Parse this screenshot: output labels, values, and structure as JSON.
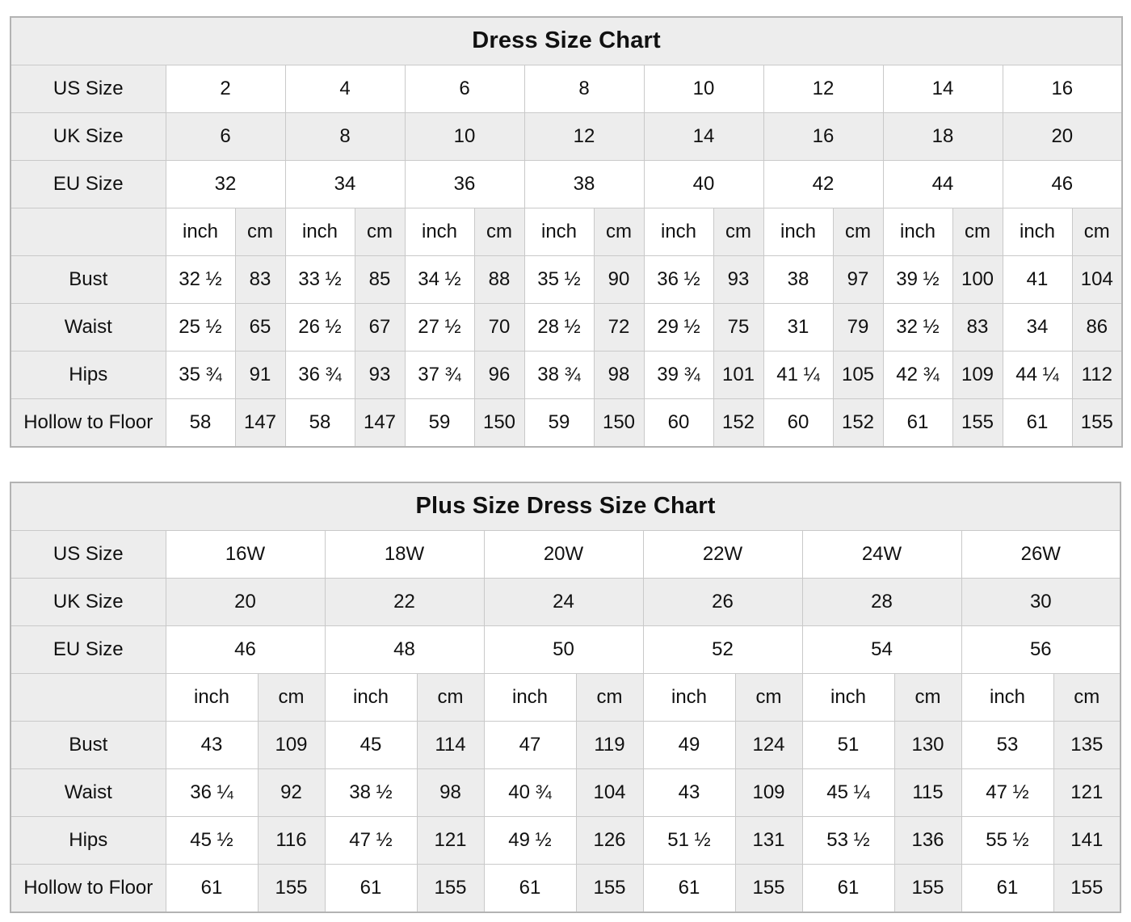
{
  "colors": {
    "shaded_cell_bg": "#ededed",
    "inner_border": "#c9c9c9",
    "outer_border": "#b3b3b3",
    "text": "#111111",
    "page_bg": "#ffffff"
  },
  "chart_data": [
    {
      "type": "table",
      "title": "Dress Size Chart",
      "size_rows": [
        {
          "label": "US Size",
          "values": [
            "2",
            "4",
            "6",
            "8",
            "10",
            "12",
            "14",
            "16"
          ]
        },
        {
          "label": "UK Size",
          "values": [
            "6",
            "8",
            "10",
            "12",
            "14",
            "16",
            "18",
            "20"
          ]
        },
        {
          "label": "EU Size",
          "values": [
            "32",
            "34",
            "36",
            "38",
            "40",
            "42",
            "44",
            "46"
          ]
        }
      ],
      "unit_labels": [
        "inch",
        "cm"
      ],
      "measurement_rows": [
        {
          "label": "Bust",
          "values": [
            [
              "32 ½",
              "83"
            ],
            [
              "33 ½",
              "85"
            ],
            [
              "34 ½",
              "88"
            ],
            [
              "35 ½",
              "90"
            ],
            [
              "36 ½",
              "93"
            ],
            [
              "38",
              "97"
            ],
            [
              "39 ½",
              "100"
            ],
            [
              "41",
              "104"
            ]
          ]
        },
        {
          "label": "Waist",
          "values": [
            [
              "25 ½",
              "65"
            ],
            [
              "26 ½",
              "67"
            ],
            [
              "27 ½",
              "70"
            ],
            [
              "28 ½",
              "72"
            ],
            [
              "29 ½",
              "75"
            ],
            [
              "31",
              "79"
            ],
            [
              "32 ½",
              "83"
            ],
            [
              "34",
              "86"
            ]
          ]
        },
        {
          "label": "Hips",
          "values": [
            [
              "35 ¾",
              "91"
            ],
            [
              "36 ¾",
              "93"
            ],
            [
              "37 ¾",
              "96"
            ],
            [
              "38 ¾",
              "98"
            ],
            [
              "39 ¾",
              "101"
            ],
            [
              "41 ¼",
              "105"
            ],
            [
              "42 ¾",
              "109"
            ],
            [
              "44 ¼",
              "112"
            ]
          ]
        },
        {
          "label": "Hollow to Floor",
          "values": [
            [
              "58",
              "147"
            ],
            [
              "58",
              "147"
            ],
            [
              "59",
              "150"
            ],
            [
              "59",
              "150"
            ],
            [
              "60",
              "152"
            ],
            [
              "60",
              "152"
            ],
            [
              "61",
              "155"
            ],
            [
              "61",
              "155"
            ]
          ]
        }
      ]
    },
    {
      "type": "table",
      "title": "Plus Size Dress Size Chart",
      "size_rows": [
        {
          "label": "US Size",
          "values": [
            "16W",
            "18W",
            "20W",
            "22W",
            "24W",
            "26W"
          ]
        },
        {
          "label": "UK Size",
          "values": [
            "20",
            "22",
            "24",
            "26",
            "28",
            "30"
          ]
        },
        {
          "label": "EU Size",
          "values": [
            "46",
            "48",
            "50",
            "52",
            "54",
            "56"
          ]
        }
      ],
      "unit_labels": [
        "inch",
        "cm"
      ],
      "measurement_rows": [
        {
          "label": "Bust",
          "values": [
            [
              "43",
              "109"
            ],
            [
              "45",
              "114"
            ],
            [
              "47",
              "119"
            ],
            [
              "49",
              "124"
            ],
            [
              "51",
              "130"
            ],
            [
              "53",
              "135"
            ]
          ]
        },
        {
          "label": "Waist",
          "values": [
            [
              "36 ¼",
              "92"
            ],
            [
              "38 ½",
              "98"
            ],
            [
              "40 ¾",
              "104"
            ],
            [
              "43",
              "109"
            ],
            [
              "45 ¼",
              "115"
            ],
            [
              "47 ½",
              "121"
            ]
          ]
        },
        {
          "label": "Hips",
          "values": [
            [
              "45 ½",
              "116"
            ],
            [
              "47 ½",
              "121"
            ],
            [
              "49 ½",
              "126"
            ],
            [
              "51 ½",
              "131"
            ],
            [
              "53 ½",
              "136"
            ],
            [
              "55 ½",
              "141"
            ]
          ]
        },
        {
          "label": "Hollow to Floor",
          "values": [
            [
              "61",
              "155"
            ],
            [
              "61",
              "155"
            ],
            [
              "61",
              "155"
            ],
            [
              "61",
              "155"
            ],
            [
              "61",
              "155"
            ],
            [
              "61",
              "155"
            ]
          ]
        }
      ]
    }
  ]
}
